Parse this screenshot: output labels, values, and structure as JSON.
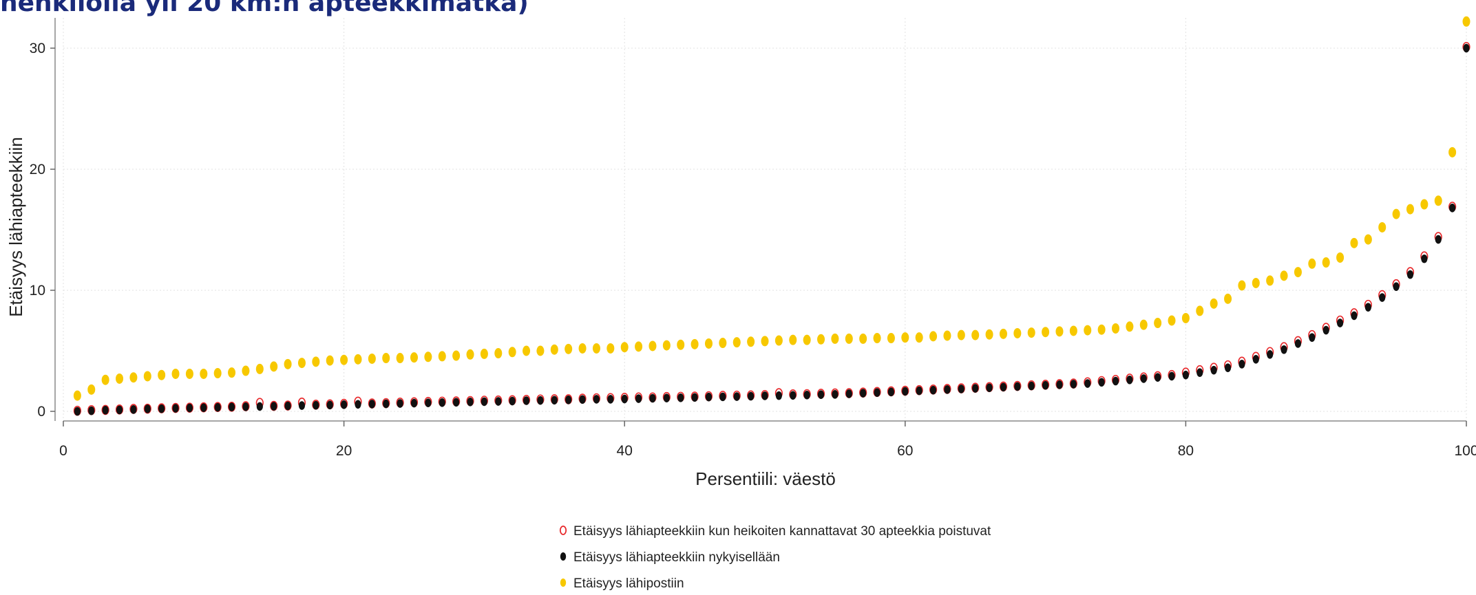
{
  "page_title": "henkilöllä yli 20 km:n apteekkimatka)",
  "chart_data": {
    "type": "scatter",
    "title": "henkilöllä yli 20 km:n apteekkimatka)",
    "xlabel": "Persentiili: väestö",
    "ylabel": "Etäisyys lähiapteekkiin",
    "xlim": [
      0,
      100
    ],
    "ylim": [
      0,
      30
    ],
    "x_ticks": [
      "0",
      "20",
      "40",
      "60",
      "80",
      "100"
    ],
    "y_ticks": [
      "0",
      "10",
      "20",
      "30"
    ],
    "grid": true,
    "legend_position": "bottom",
    "colors": {
      "closure": "#e8282b",
      "current": "#111111",
      "post": "#f7c800",
      "title": "#1a2a7a"
    },
    "x": [
      1,
      2,
      3,
      4,
      5,
      6,
      7,
      8,
      9,
      10,
      11,
      12,
      13,
      14,
      15,
      16,
      17,
      18,
      19,
      20,
      21,
      22,
      23,
      24,
      25,
      26,
      27,
      28,
      29,
      30,
      31,
      32,
      33,
      34,
      35,
      36,
      37,
      38,
      39,
      40,
      41,
      42,
      43,
      44,
      45,
      46,
      47,
      48,
      49,
      50,
      51,
      52,
      53,
      54,
      55,
      56,
      57,
      58,
      59,
      60,
      61,
      62,
      63,
      64,
      65,
      66,
      67,
      68,
      69,
      70,
      71,
      72,
      73,
      74,
      75,
      76,
      77,
      78,
      79,
      80,
      81,
      82,
      83,
      84,
      85,
      86,
      87,
      88,
      89,
      90,
      91,
      92,
      93,
      94,
      95,
      96,
      97,
      98,
      99,
      100
    ],
    "series": [
      {
        "name": "Etäisyys lähiapteekkiin kun heikoiten kannattavat 30 apteekkia poistuvat",
        "marker": "hollow",
        "values": [
          0.05,
          0.1,
          0.12,
          0.15,
          0.2,
          0.22,
          0.25,
          0.28,
          0.3,
          0.33,
          0.36,
          0.38,
          0.42,
          0.7,
          0.45,
          0.48,
          0.72,
          0.55,
          0.58,
          0.62,
          0.8,
          0.65,
          0.68,
          0.72,
          0.75,
          0.78,
          0.8,
          0.82,
          0.85,
          0.88,
          0.9,
          0.92,
          0.95,
          0.98,
          1.0,
          1.0,
          1.05,
          1.08,
          1.1,
          1.12,
          1.15,
          1.15,
          1.18,
          1.2,
          1.22,
          1.25,
          1.28,
          1.3,
          1.32,
          1.35,
          1.5,
          1.4,
          1.42,
          1.45,
          1.48,
          1.5,
          1.55,
          1.6,
          1.65,
          1.7,
          1.75,
          1.8,
          1.85,
          1.9,
          1.95,
          2.0,
          2.05,
          2.1,
          2.15,
          2.2,
          2.25,
          2.3,
          2.4,
          2.5,
          2.6,
          2.7,
          2.8,
          2.9,
          3.0,
          3.2,
          3.4,
          3.6,
          3.8,
          4.1,
          4.5,
          4.9,
          5.3,
          5.8,
          6.3,
          6.9,
          7.5,
          8.1,
          8.8,
          9.6,
          10.5,
          11.5,
          12.8,
          14.4,
          16.9,
          30.1
        ]
      },
      {
        "name": "Etäisyys lähiapteekkiin nykyisellään",
        "marker": "filled",
        "values": [
          0.0,
          0.05,
          0.1,
          0.12,
          0.15,
          0.2,
          0.22,
          0.25,
          0.28,
          0.3,
          0.33,
          0.36,
          0.38,
          0.4,
          0.42,
          0.45,
          0.48,
          0.5,
          0.52,
          0.55,
          0.58,
          0.6,
          0.62,
          0.65,
          0.68,
          0.7,
          0.72,
          0.75,
          0.78,
          0.8,
          0.82,
          0.85,
          0.88,
          0.9,
          0.92,
          0.95,
          0.98,
          1.0,
          1.0,
          1.02,
          1.05,
          1.08,
          1.1,
          1.12,
          1.15,
          1.18,
          1.2,
          1.22,
          1.25,
          1.28,
          1.3,
          1.32,
          1.35,
          1.38,
          1.4,
          1.45,
          1.5,
          1.55,
          1.6,
          1.65,
          1.7,
          1.75,
          1.8,
          1.85,
          1.9,
          1.95,
          2.0,
          2.05,
          2.1,
          2.15,
          2.2,
          2.25,
          2.3,
          2.4,
          2.5,
          2.6,
          2.7,
          2.8,
          2.9,
          3.0,
          3.2,
          3.4,
          3.6,
          3.9,
          4.3,
          4.7,
          5.1,
          5.6,
          6.1,
          6.7,
          7.3,
          7.9,
          8.6,
          9.4,
          10.3,
          11.3,
          12.6,
          14.2,
          16.8,
          30.0
        ]
      },
      {
        "name": "Etäisyys lähipostiin",
        "marker": "filled",
        "values": [
          1.3,
          1.8,
          2.6,
          2.7,
          2.8,
          2.9,
          3.0,
          3.1,
          3.1,
          3.1,
          3.15,
          3.2,
          3.35,
          3.5,
          3.7,
          3.9,
          4.0,
          4.1,
          4.2,
          4.25,
          4.3,
          4.35,
          4.4,
          4.4,
          4.45,
          4.5,
          4.55,
          4.6,
          4.7,
          4.75,
          4.8,
          4.9,
          5.0,
          5.0,
          5.1,
          5.15,
          5.2,
          5.2,
          5.2,
          5.3,
          5.35,
          5.4,
          5.45,
          5.5,
          5.55,
          5.6,
          5.65,
          5.7,
          5.75,
          5.8,
          5.85,
          5.9,
          5.9,
          5.95,
          6.0,
          6.0,
          6.0,
          6.05,
          6.05,
          6.1,
          6.1,
          6.2,
          6.25,
          6.3,
          6.3,
          6.35,
          6.4,
          6.45,
          6.5,
          6.55,
          6.6,
          6.65,
          6.7,
          6.75,
          6.85,
          7.0,
          7.15,
          7.3,
          7.5,
          7.7,
          8.3,
          8.9,
          9.3,
          10.4,
          10.6,
          10.8,
          11.2,
          11.5,
          12.2,
          12.3,
          12.7,
          13.9,
          14.2,
          15.2,
          16.3,
          16.7,
          17.1,
          17.4,
          21.4,
          32.2
        ]
      }
    ]
  }
}
